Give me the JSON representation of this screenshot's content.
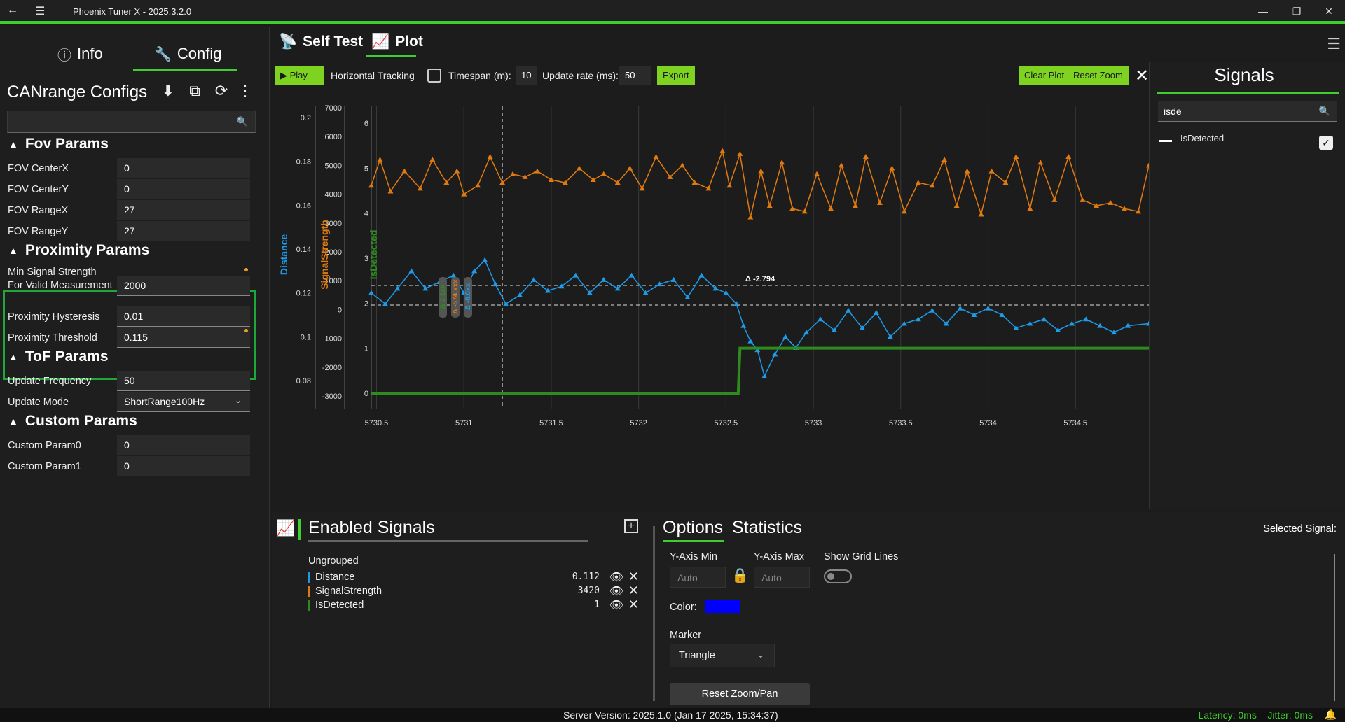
{
  "window": {
    "title": "Phoenix Tuner X - 2025.3.2.0",
    "back_icon": "back-arrow-icon",
    "menu_icon": "hamburger-icon",
    "minimize": "—",
    "maximize": "❐",
    "close": "✕"
  },
  "left_tabs": {
    "info": "Info",
    "config": "Config"
  },
  "config": {
    "title": "CANrange Configs",
    "search_value": "",
    "groups": {
      "fov": {
        "title": "Fov Params",
        "rows": [
          {
            "label": "FOV CenterX",
            "value": "0"
          },
          {
            "label": "FOV CenterY",
            "value": "0"
          },
          {
            "label": "FOV RangeX",
            "value": "27"
          },
          {
            "label": "FOV RangeY",
            "value": "27"
          }
        ]
      },
      "proximity": {
        "title": "Proximity Params",
        "rows": [
          {
            "label": "Min Signal Strength For Valid Measurement",
            "value": "2000"
          },
          {
            "label": "Proximity Hysteresis",
            "value": "0.01"
          },
          {
            "label": "Proximity Threshold",
            "value": "0.115"
          }
        ]
      },
      "tof": {
        "title": "ToF Params",
        "rows": [
          {
            "label": "Update Frequency",
            "value": "50"
          },
          {
            "label": "Update Mode",
            "value": "ShortRange100Hz"
          }
        ]
      },
      "custom": {
        "title": "Custom Params",
        "rows": [
          {
            "label": "Custom Param0",
            "value": "0"
          },
          {
            "label": "Custom Param1",
            "value": "0"
          }
        ]
      }
    },
    "modified_color": "#f0a020",
    "highlight_color": "#1fa83a"
  },
  "plot_tabs": {
    "self_test": "Self Test",
    "plot": "Plot"
  },
  "toolbar": {
    "play": "Play",
    "horizontal_tracking": "Horizontal Tracking",
    "timespan_label": "Timespan (m):",
    "timespan_value": "10",
    "update_rate_label": "Update rate (ms):",
    "update_rate_value": "50",
    "export": "Export",
    "clear_plot": "Clear Plot",
    "reset_zoom": "Reset Zoom"
  },
  "chart_data": {
    "type": "line",
    "axes": {
      "distance": {
        "label": "Distance",
        "color": "#1e9be8",
        "ticks": [
          "0.2",
          "0.18",
          "0.16",
          "0.14",
          "0.12",
          "0.1",
          "0.08"
        ]
      },
      "signal_strength": {
        "label": "SignalStrength",
        "color": "#e07a10",
        "ticks": [
          "7000",
          "6000",
          "5000",
          "4000",
          "3000",
          "2000",
          "1000",
          "0",
          "-1000",
          "-2000",
          "-3000"
        ]
      },
      "is_detected": {
        "label": "IsDetected",
        "color": "#2e8b1e",
        "ticks": [
          "6",
          "5",
          "4",
          "3",
          "2",
          "1",
          "0"
        ]
      }
    },
    "x_ticks": [
      "5730.5",
      "5731",
      "5731.5",
      "5732",
      "5732.5",
      "5733",
      "5733.5",
      "5734",
      "5734.5"
    ],
    "xlim": [
      5730.47,
      5734.92
    ],
    "marker": "triangle",
    "delta_label": "Δ -2.794",
    "cursor_labels": [
      {
        "text": "Δ 2.1xx",
        "color": "#2e8b1e"
      },
      {
        "text": "Δ -574.xxx",
        "color": "#e07a10"
      },
      {
        "text": "Δ -0.0xx",
        "color": "#1e9be8"
      }
    ],
    "series": [
      {
        "name": "SignalStrength",
        "axis": "signal_strength",
        "color": "#e07a10",
        "x": [
          5730.47,
          5730.52,
          5730.58,
          5730.66,
          5730.75,
          5730.82,
          5730.9,
          5730.96,
          5731.0,
          5731.08,
          5731.15,
          5731.22,
          5731.28,
          5731.35,
          5731.42,
          5731.5,
          5731.58,
          5731.66,
          5731.74,
          5731.8,
          5731.88,
          5731.95,
          5732.02,
          5732.1,
          5732.18,
          5732.25,
          5732.32,
          5732.4,
          5732.48,
          5732.52,
          5732.58,
          5732.64,
          5732.7,
          5732.75,
          5732.82,
          5732.88,
          5732.95,
          5733.02,
          5733.1,
          5733.16,
          5733.24,
          5733.3,
          5733.38,
          5733.45,
          5733.52,
          5733.6,
          5733.68,
          5733.75,
          5733.82,
          5733.88,
          5733.96,
          5734.02,
          5734.1,
          5734.16,
          5734.24,
          5734.3,
          5734.38,
          5734.46,
          5734.54,
          5734.62,
          5734.7,
          5734.78,
          5734.86,
          5734.92
        ],
        "values": [
          4300,
          5200,
          4100,
          4800,
          4200,
          5200,
          4400,
          4800,
          4000,
          4300,
          5300,
          4400,
          4700,
          4600,
          4800,
          4500,
          4400,
          4900,
          4500,
          4700,
          4400,
          4900,
          4200,
          5300,
          4600,
          5000,
          4400,
          4200,
          5500,
          4300,
          5400,
          3200,
          4800,
          3600,
          5100,
          3500,
          3400,
          4700,
          3500,
          5000,
          3600,
          5300,
          3700,
          4900,
          3400,
          4400,
          4300,
          5200,
          3600,
          4800,
          3300,
          4800,
          4400,
          5300,
          3500,
          5100,
          3800,
          5300,
          3800,
          3600,
          3700,
          3500,
          3400,
          5000
        ]
      },
      {
        "name": "Distance",
        "axis": "distance",
        "color": "#1e9be8",
        "x": [
          5730.47,
          5730.55,
          5730.62,
          5730.7,
          5730.78,
          5730.86,
          5730.94,
          5731.0,
          5731.06,
          5731.12,
          5731.18,
          5731.24,
          5731.32,
          5731.4,
          5731.48,
          5731.56,
          5731.64,
          5731.72,
          5731.8,
          5731.88,
          5731.96,
          5732.04,
          5732.12,
          5732.2,
          5732.28,
          5732.36,
          5732.44,
          5732.5,
          5732.56,
          5732.6,
          5732.64,
          5732.68,
          5732.72,
          5732.78,
          5732.84,
          5732.9,
          5732.96,
          5733.04,
          5733.12,
          5733.2,
          5733.28,
          5733.36,
          5733.44,
          5733.52,
          5733.6,
          5733.68,
          5733.76,
          5733.84,
          5733.92,
          5734.0,
          5734.08,
          5734.16,
          5734.24,
          5734.32,
          5734.4,
          5734.48,
          5734.56,
          5734.64,
          5734.72,
          5734.8,
          5734.92
        ],
        "values": [
          0.12,
          0.115,
          0.122,
          0.13,
          0.122,
          0.125,
          0.128,
          0.12,
          0.13,
          0.135,
          0.124,
          0.115,
          0.119,
          0.126,
          0.121,
          0.123,
          0.128,
          0.12,
          0.126,
          0.122,
          0.128,
          0.12,
          0.124,
          0.126,
          0.118,
          0.128,
          0.122,
          0.12,
          0.115,
          0.105,
          0.098,
          0.094,
          0.082,
          0.092,
          0.1,
          0.095,
          0.102,
          0.108,
          0.103,
          0.112,
          0.104,
          0.111,
          0.1,
          0.106,
          0.108,
          0.112,
          0.106,
          0.113,
          0.11,
          0.113,
          0.11,
          0.104,
          0.106,
          0.108,
          0.103,
          0.106,
          0.108,
          0.105,
          0.102,
          0.105,
          0.106
        ]
      },
      {
        "name": "IsDetected",
        "axis": "is_detected",
        "color": "#2e8b1e",
        "x": [
          5730.47,
          5732.57,
          5732.58,
          5734.92
        ],
        "values": [
          0,
          0,
          1,
          1
        ]
      }
    ]
  },
  "signals_panel": {
    "title": "Signals",
    "search_value": "isde",
    "items": [
      {
        "name": "IsDetected",
        "checked": true
      }
    ]
  },
  "enabled_signals": {
    "title": "Enabled Signals",
    "group": "Ungrouped",
    "rows": [
      {
        "name": "Distance",
        "value": "0.112",
        "color": "#1e9be8"
      },
      {
        "name": "SignalStrength",
        "value": "3420",
        "color": "#e07a10"
      },
      {
        "name": "IsDetected",
        "value": "1",
        "color": "#2e8b1e"
      }
    ]
  },
  "options": {
    "tab_options": "Options",
    "tab_statistics": "Statistics",
    "selected_signal": "Selected Signal:",
    "ymin_label": "Y-Axis Min",
    "ymin_placeholder": "Auto",
    "ymax_label": "Y-Axis Max",
    "ymax_placeholder": "Auto",
    "grid_label": "Show Grid Lines",
    "color_label": "Color:",
    "color_value": "#0000ff",
    "marker_label": "Marker",
    "marker_value": "Triangle",
    "reset_pan": "Reset Zoom/Pan"
  },
  "status": {
    "server": "Server Version:  2025.1.0 (Jan 17 2025, 15:34:37)",
    "latency": "Latency: 0ms – Jitter: 0ms"
  }
}
